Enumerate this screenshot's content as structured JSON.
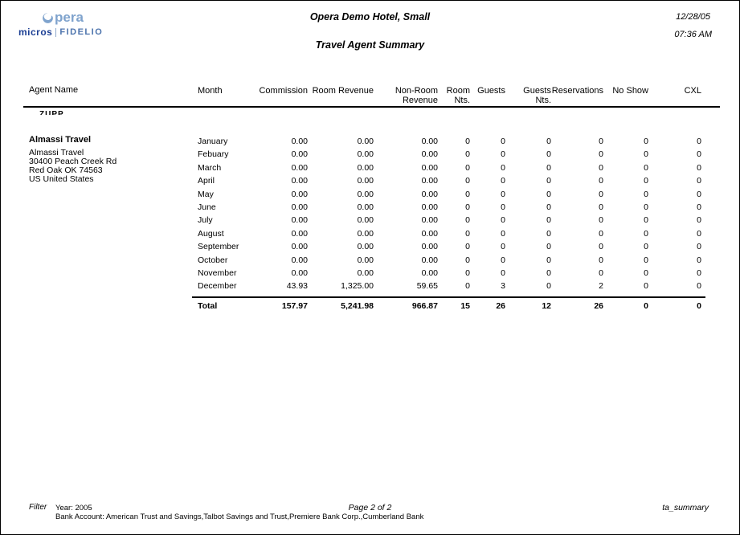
{
  "logo": {
    "brand": "Opera",
    "opera_tail": "pera",
    "micros": "micros",
    "fidelio": "FIDELIO",
    "opera_color": "#7fa3cd",
    "micros_color": "#1c3f94",
    "fidelio_color": "#4d74ad"
  },
  "header": {
    "hotel_name": "Opera Demo Hotel, Small",
    "date": "12/28/05",
    "time": "07:36 AM",
    "report_title": "Travel Agent Summary"
  },
  "table": {
    "agent_name_header": "Agent Name",
    "month_header": "Month",
    "columns": [
      {
        "lines": [
          "Commission"
        ]
      },
      {
        "lines": [
          "Room Revenue"
        ]
      },
      {
        "lines": [
          "Non-Room",
          "Revenue"
        ]
      },
      {
        "lines": [
          "Room",
          "Nts."
        ]
      },
      {
        "lines": [
          "Guests"
        ]
      },
      {
        "lines": [
          "Guests",
          "Nts."
        ]
      },
      {
        "lines": [
          "Reservations"
        ]
      },
      {
        "lines": [
          "No Show"
        ]
      },
      {
        "lines": [
          "CXL"
        ]
      }
    ],
    "clipped_fragment": "ZUPP",
    "agent": {
      "name": "Almassi Travel",
      "address_lines": [
        "Almassi Travel",
        "30400 Peach Creek Rd",
        "Red Oak OK 74563",
        "US United States"
      ]
    },
    "rows": [
      {
        "month": "January",
        "values": [
          "0.00",
          "0.00",
          "0.00",
          "0",
          "0",
          "0",
          "0",
          "0",
          "0"
        ]
      },
      {
        "month": "Febuary",
        "values": [
          "0.00",
          "0.00",
          "0.00",
          "0",
          "0",
          "0",
          "0",
          "0",
          "0"
        ]
      },
      {
        "month": "March",
        "values": [
          "0.00",
          "0.00",
          "0.00",
          "0",
          "0",
          "0",
          "0",
          "0",
          "0"
        ]
      },
      {
        "month": "April",
        "values": [
          "0.00",
          "0.00",
          "0.00",
          "0",
          "0",
          "0",
          "0",
          "0",
          "0"
        ]
      },
      {
        "month": "May",
        "values": [
          "0.00",
          "0.00",
          "0.00",
          "0",
          "0",
          "0",
          "0",
          "0",
          "0"
        ]
      },
      {
        "month": "June",
        "values": [
          "0.00",
          "0.00",
          "0.00",
          "0",
          "0",
          "0",
          "0",
          "0",
          "0"
        ]
      },
      {
        "month": "July",
        "values": [
          "0.00",
          "0.00",
          "0.00",
          "0",
          "0",
          "0",
          "0",
          "0",
          "0"
        ]
      },
      {
        "month": "August",
        "values": [
          "0.00",
          "0.00",
          "0.00",
          "0",
          "0",
          "0",
          "0",
          "0",
          "0"
        ]
      },
      {
        "month": "September",
        "values": [
          "0.00",
          "0.00",
          "0.00",
          "0",
          "0",
          "0",
          "0",
          "0",
          "0"
        ]
      },
      {
        "month": "October",
        "values": [
          "0.00",
          "0.00",
          "0.00",
          "0",
          "0",
          "0",
          "0",
          "0",
          "0"
        ]
      },
      {
        "month": "November",
        "values": [
          "0.00",
          "0.00",
          "0.00",
          "0",
          "0",
          "0",
          "0",
          "0",
          "0"
        ]
      },
      {
        "month": "December",
        "values": [
          "43.93",
          "1,325.00",
          "59.65",
          "0",
          "3",
          "0",
          "2",
          "0",
          "0"
        ]
      }
    ],
    "total": {
      "label": "Total",
      "values": [
        "157.97",
        "5,241.98",
        "966.87",
        "15",
        "26",
        "12",
        "26",
        "0",
        "0"
      ]
    }
  },
  "footer": {
    "filter_label": "Filter",
    "year_line": "Year: 2005",
    "bank_line": "Bank Account: American Trust and Savings,Talbot Savings and Trust,Premiere Bank Corp.,Cumberland Bank",
    "page_label": "Page 2 of 2",
    "report_id": "ta_summary"
  }
}
